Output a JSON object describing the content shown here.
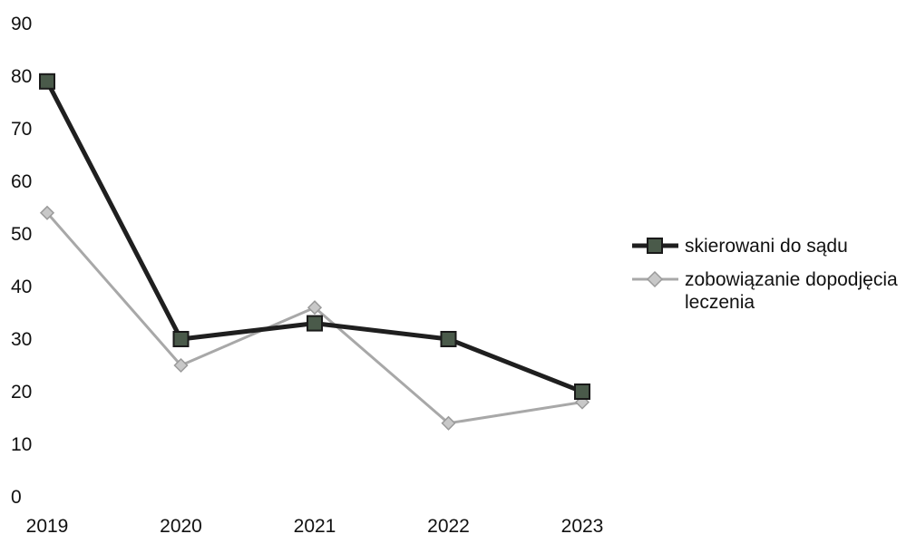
{
  "chart_data": {
    "type": "line",
    "title": "",
    "xlabel": "",
    "ylabel": "",
    "categories": [
      "2019",
      "2020",
      "2021",
      "2022",
      "2023"
    ],
    "ylim": [
      0,
      90
    ],
    "yticks": [
      "0",
      "10",
      "20",
      "30",
      "40",
      "50",
      "60",
      "70",
      "80",
      "90"
    ],
    "grid": false,
    "legend_position": "right",
    "series": [
      {
        "name": "skierowani do sądu",
        "values": [
          79,
          30,
          33,
          30,
          20
        ],
        "color": "#1f1f1f",
        "marker": "square"
      },
      {
        "name": "zobowiązanie dopodjęcia leczenia",
        "name_lines": [
          "zobowiązanie dopodjęcia",
          "leczenia"
        ],
        "values": [
          54,
          25,
          36,
          14,
          18
        ],
        "color": "#a8a8a8",
        "marker": "diamond"
      }
    ]
  }
}
